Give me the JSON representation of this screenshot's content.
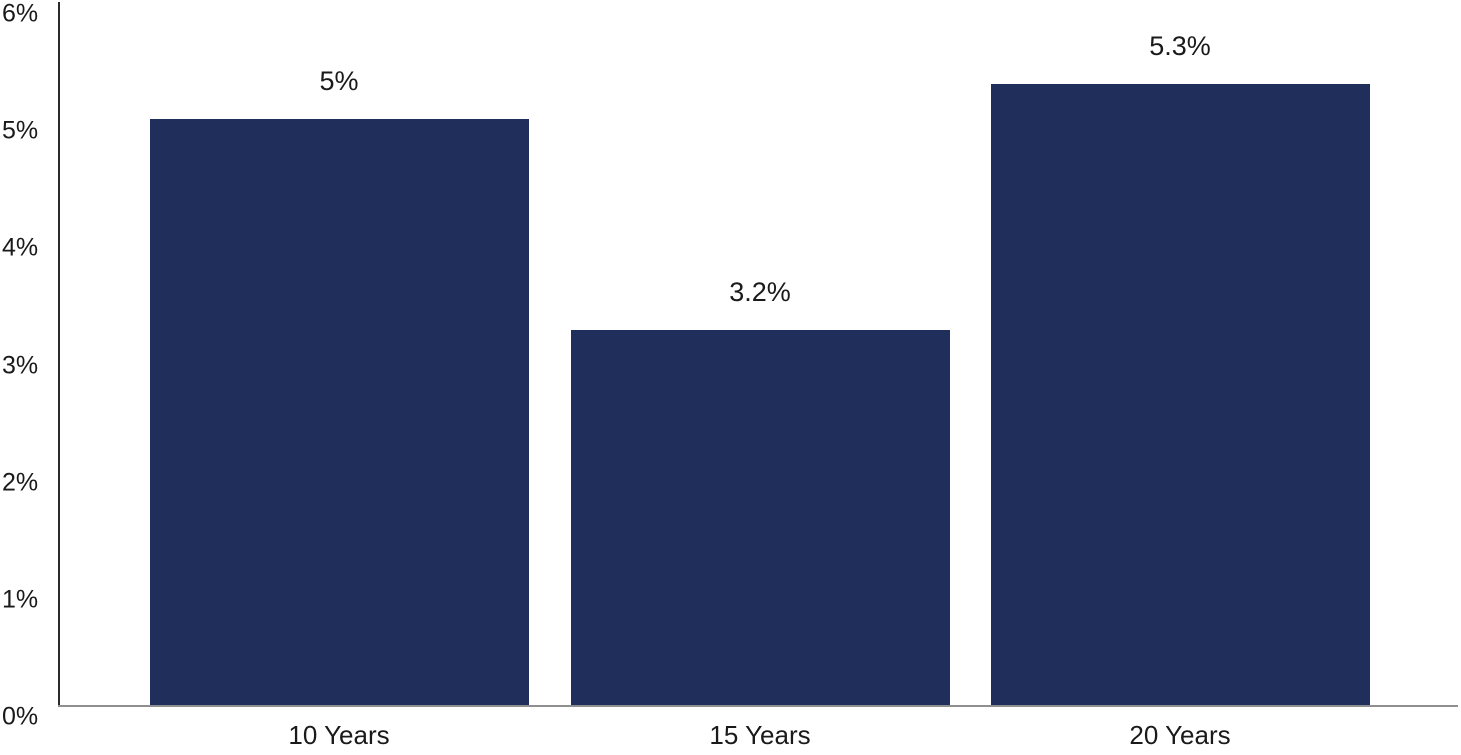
{
  "chart_data": {
    "type": "bar",
    "title": "",
    "xlabel": "",
    "ylabel": "",
    "categories": [
      "10 Years",
      "15 Years",
      "20 Years"
    ],
    "values": [
      5.0,
      3.2,
      5.3
    ],
    "value_labels": [
      "5%",
      "3.2%",
      "5.3%"
    ],
    "ylim": [
      0,
      6
    ],
    "ytick_labels": [
      "0%",
      "1%",
      "2%",
      "3%",
      "4%",
      "5%",
      "6%"
    ],
    "grid": false,
    "legend": "none",
    "colors": {
      "bar": "#202E5B",
      "text": "#1A1A1A",
      "y_axis_line": "#2B2B2B",
      "x_axis_line": "#8F8F8F",
      "background": "#FFFFFF"
    }
  }
}
